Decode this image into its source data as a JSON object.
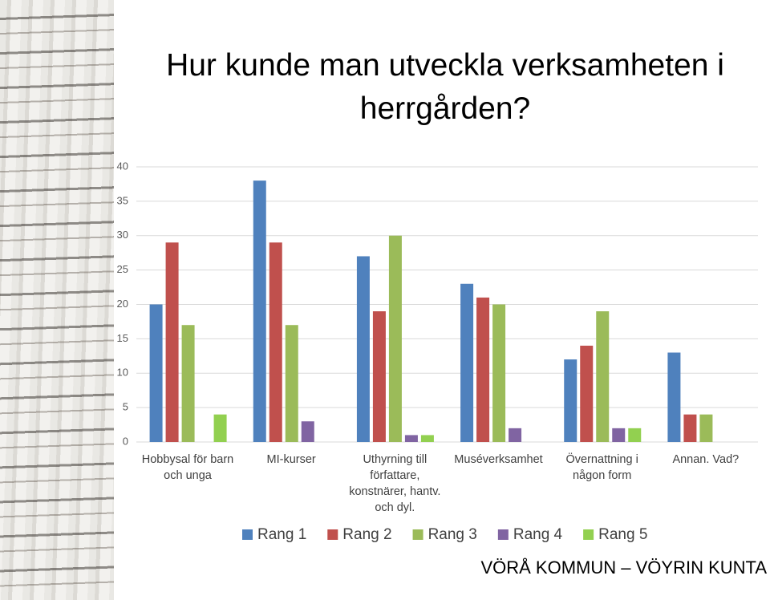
{
  "chart_data": {
    "type": "bar",
    "title": "Hur kunde man utveckla verksamheten i herrgården?",
    "categories": [
      "Hobbysal för barn och unga",
      "MI-kurser",
      "Uthyrning till författare, konstnärer, hantv. och dyl.",
      "Muséverksamhet",
      "Övernattning i någon form",
      "Annan. Vad?"
    ],
    "series": [
      {
        "name": "Rang 1",
        "color": "#4f81bd",
        "values": [
          20,
          38,
          27,
          23,
          12,
          13
        ]
      },
      {
        "name": "Rang 2",
        "color": "#c0504d",
        "values": [
          29,
          29,
          19,
          21,
          14,
          4
        ]
      },
      {
        "name": "Rang 3",
        "color": "#9bbb59",
        "values": [
          17,
          17,
          30,
          20,
          19,
          4
        ]
      },
      {
        "name": "Rang 4",
        "color": "#8064a2",
        "values": [
          0,
          3,
          1,
          2,
          2,
          0
        ]
      },
      {
        "name": "Rang 5",
        "color": "#92d050",
        "values": [
          4,
          0,
          1,
          0,
          2,
          0
        ]
      }
    ],
    "ylim": [
      0,
      40
    ],
    "yticks": [
      0,
      5,
      10,
      15,
      20,
      25,
      30,
      35,
      40
    ],
    "grid": true,
    "legend": "bottom"
  },
  "footer": "VÖRÅ KOMMUN – VÖYRIN KUNTA"
}
